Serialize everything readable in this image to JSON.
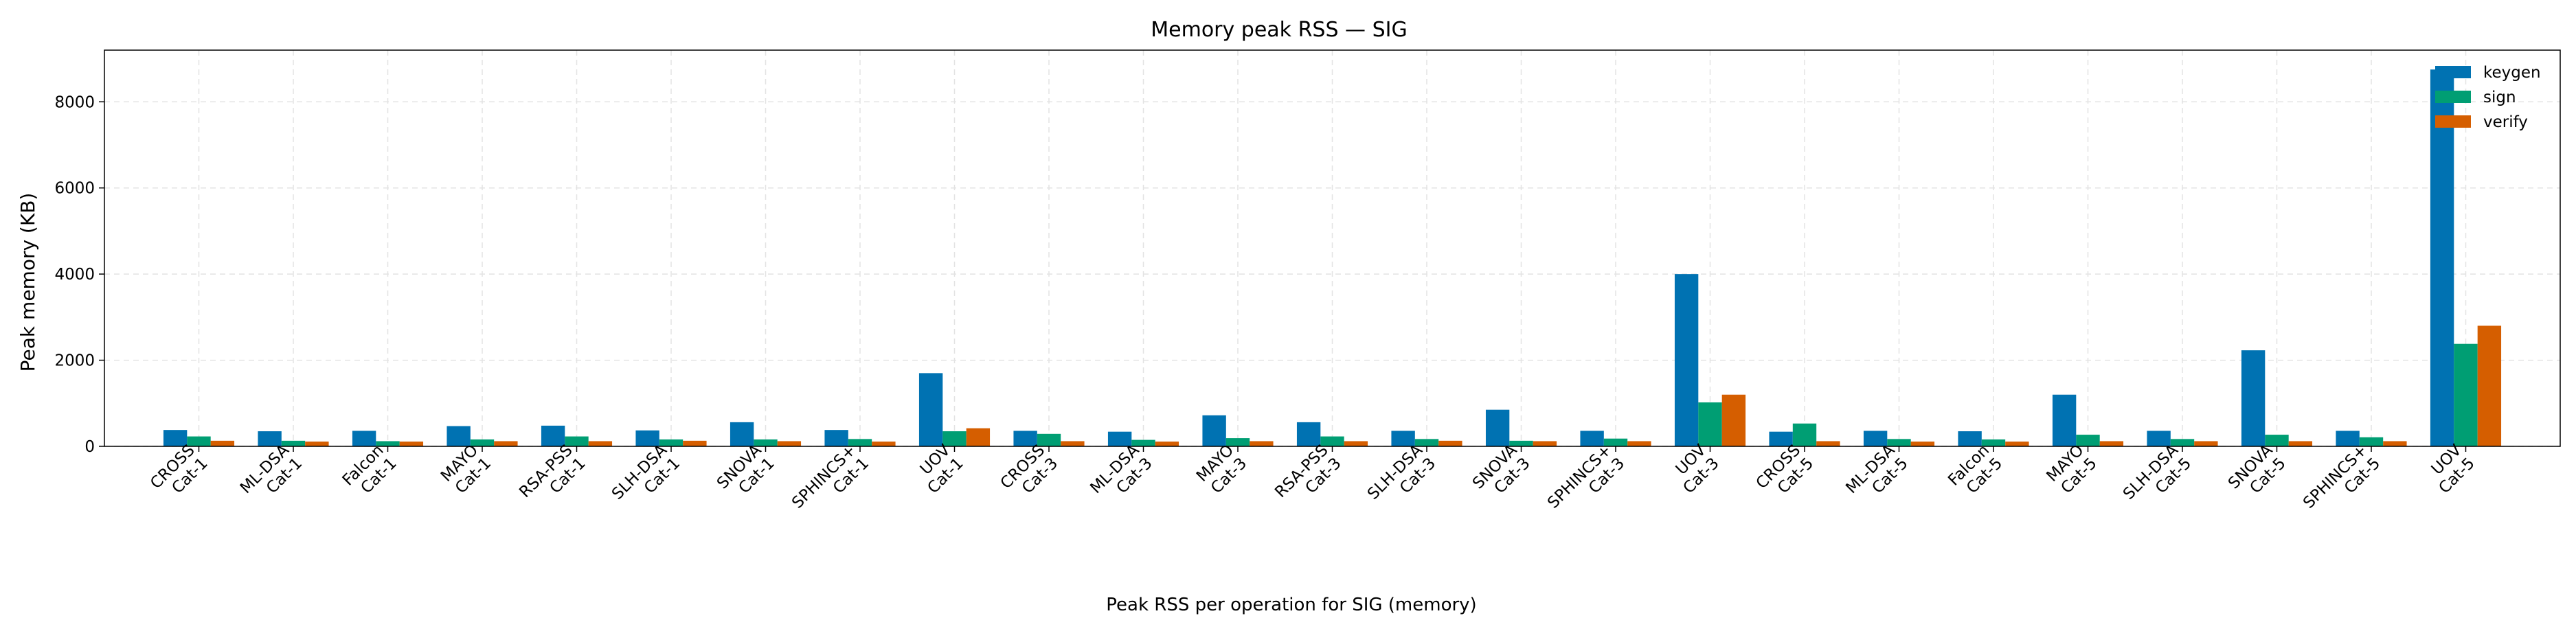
{
  "chart_data": {
    "type": "bar",
    "title": "Memory peak RSS — SIG",
    "xlabel": "Peak RSS per operation for SIG (memory)",
    "ylabel": "Peak memory (KB)",
    "ylim": [
      0,
      9200
    ],
    "yticks": [
      0,
      2000,
      4000,
      6000,
      8000
    ],
    "grid": true,
    "legend_position": "top-right",
    "categories": [
      [
        "CROSS",
        "Cat-1"
      ],
      [
        "ML-DSA",
        "Cat-1"
      ],
      [
        "Falcon",
        "Cat-1"
      ],
      [
        "MAYO",
        "Cat-1"
      ],
      [
        "RSA-PSS",
        "Cat-1"
      ],
      [
        "SLH-DSA",
        "Cat-1"
      ],
      [
        "SNOVA",
        "Cat-1"
      ],
      [
        "SPHINCS+",
        "Cat-1"
      ],
      [
        "UOV",
        "Cat-1"
      ],
      [
        "CROSS",
        "Cat-3"
      ],
      [
        "ML-DSA",
        "Cat-3"
      ],
      [
        "MAYO",
        "Cat-3"
      ],
      [
        "RSA-PSS",
        "Cat-3"
      ],
      [
        "SLH-DSA",
        "Cat-3"
      ],
      [
        "SNOVA",
        "Cat-3"
      ],
      [
        "SPHINCS+",
        "Cat-3"
      ],
      [
        "UOV",
        "Cat-3"
      ],
      [
        "CROSS",
        "Cat-5"
      ],
      [
        "ML-DSA",
        "Cat-5"
      ],
      [
        "Falcon",
        "Cat-5"
      ],
      [
        "MAYO",
        "Cat-5"
      ],
      [
        "SLH-DSA",
        "Cat-5"
      ],
      [
        "SNOVA",
        "Cat-5"
      ],
      [
        "SPHINCS+",
        "Cat-5"
      ],
      [
        "UOV",
        "Cat-5"
      ]
    ],
    "series": [
      {
        "name": "keygen",
        "color": "#0072B2",
        "values": [
          380,
          350,
          360,
          470,
          480,
          370,
          560,
          380,
          1700,
          360,
          340,
          720,
          560,
          360,
          850,
          360,
          4000,
          340,
          360,
          350,
          1200,
          360,
          2230,
          360,
          8750
        ]
      },
      {
        "name": "sign",
        "color": "#009E73",
        "values": [
          230,
          130,
          120,
          160,
          230,
          160,
          160,
          170,
          350,
          290,
          150,
          190,
          230,
          170,
          130,
          180,
          1020,
          530,
          170,
          160,
          270,
          170,
          270,
          210,
          2380
        ]
      },
      {
        "name": "verify",
        "color": "#D55E00",
        "values": [
          130,
          110,
          110,
          120,
          120,
          130,
          120,
          110,
          420,
          120,
          110,
          120,
          120,
          130,
          120,
          120,
          1200,
          120,
          110,
          110,
          120,
          120,
          120,
          120,
          2800
        ]
      }
    ]
  }
}
